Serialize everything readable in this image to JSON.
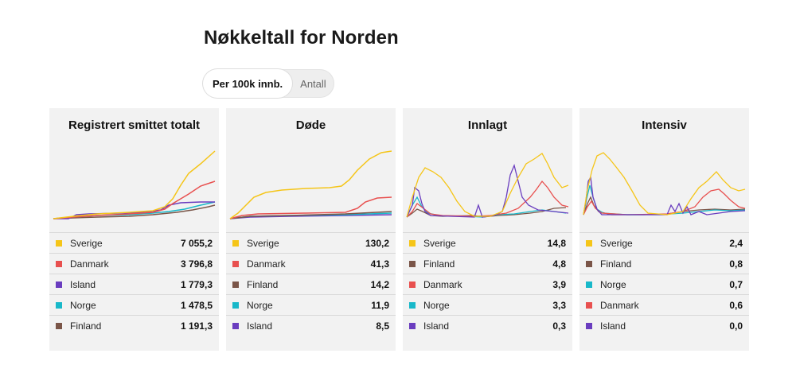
{
  "page": {
    "title": "Nøkkeltall for Norden",
    "toggle": {
      "active": "Per 100k innb.",
      "inactive": "Antall"
    }
  },
  "colors": {
    "Sverige": "#f5c518",
    "Danmark": "#e8504f",
    "Island": "#6a3dbf",
    "Norge": "#18b8c9",
    "Finland": "#7a5548"
  },
  "cards": [
    {
      "title": "Registrert smittet totalt",
      "legend": [
        {
          "country": "Sverige",
          "value": "7 055,2"
        },
        {
          "country": "Danmark",
          "value": "3 796,8"
        },
        {
          "country": "Island",
          "value": "1 779,3"
        },
        {
          "country": "Norge",
          "value": "1 478,5"
        },
        {
          "country": "Finland",
          "value": "1 191,3"
        }
      ]
    },
    {
      "title": "Døde",
      "legend": [
        {
          "country": "Sverige",
          "value": "130,2"
        },
        {
          "country": "Danmark",
          "value": "41,3"
        },
        {
          "country": "Finland",
          "value": "14,2"
        },
        {
          "country": "Norge",
          "value": "11,9"
        },
        {
          "country": "Island",
          "value": "8,5"
        }
      ]
    },
    {
      "title": "Innlagt",
      "legend": [
        {
          "country": "Sverige",
          "value": "14,8"
        },
        {
          "country": "Finland",
          "value": "4,8"
        },
        {
          "country": "Danmark",
          "value": "3,9"
        },
        {
          "country": "Norge",
          "value": "3,3"
        },
        {
          "country": "Island",
          "value": "0,3"
        }
      ]
    },
    {
      "title": "Intensiv",
      "legend": [
        {
          "country": "Sverige",
          "value": "2,4"
        },
        {
          "country": "Finland",
          "value": "0,8"
        },
        {
          "country": "Norge",
          "value": "0,7"
        },
        {
          "country": "Danmark",
          "value": "0,6"
        },
        {
          "country": "Island",
          "value": "0,0"
        }
      ]
    }
  ]
}
